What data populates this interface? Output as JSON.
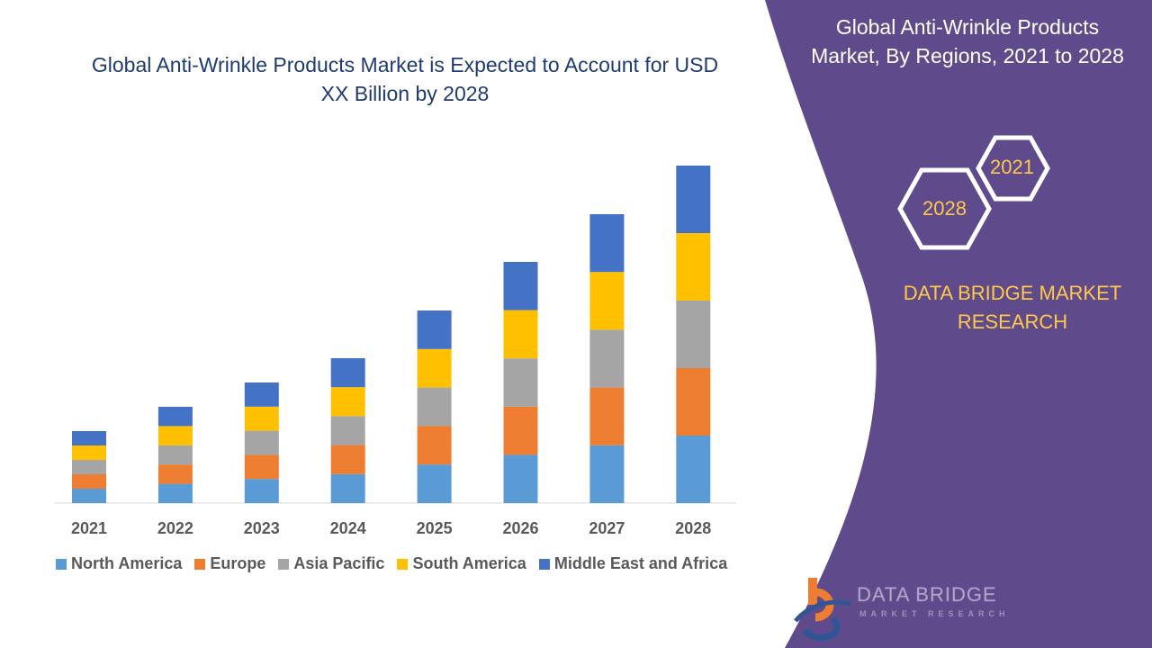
{
  "header": {
    "title": "Global Anti-Wrinkle Products Market is Expected to Account for USD XX Billion by 2028"
  },
  "side_panel": {
    "title": "Global Anti-Wrinkle Products Market, By Regions, 2021 to 2028",
    "hex_labels": [
      "2021",
      "2028"
    ],
    "brand": "DATA BRIDGE MARKET RESEARCH",
    "logo_text": "DATA BRIDGE",
    "logo_sub": "MARKET RESEARCH",
    "panel_color": "#5f4b8b"
  },
  "chart_data": {
    "type": "bar",
    "stacked": true,
    "title": "Global Anti-Wrinkle Products Market is Expected to Account for USD XX Billion by 2028",
    "categories": [
      "2021",
      "2022",
      "2023",
      "2024",
      "2025",
      "2026",
      "2027",
      "2028"
    ],
    "series": [
      {
        "name": "North America",
        "color": "#5b9bd5",
        "values": [
          16,
          21.4,
          26.8,
          32.2,
          42.8,
          53.6,
          64.2,
          75
        ]
      },
      {
        "name": "Europe",
        "color": "#ed7d31",
        "values": [
          16,
          21.4,
          26.8,
          32.2,
          42.8,
          53.6,
          64.2,
          75
        ]
      },
      {
        "name": "Asia Pacific",
        "color": "#a5a5a5",
        "values": [
          16,
          21.4,
          26.8,
          32.2,
          42.8,
          53.6,
          64.2,
          75
        ]
      },
      {
        "name": "South America",
        "color": "#ffc000",
        "values": [
          16,
          21.4,
          26.8,
          32.2,
          42.8,
          53.6,
          64.2,
          75
        ]
      },
      {
        "name": "Middle East and Africa",
        "color": "#4472c4",
        "values": [
          16,
          21.4,
          26.8,
          32.2,
          42.8,
          53.6,
          64.2,
          75
        ]
      }
    ],
    "y_axis_shown": false,
    "grid": false,
    "legend": "bottom"
  }
}
